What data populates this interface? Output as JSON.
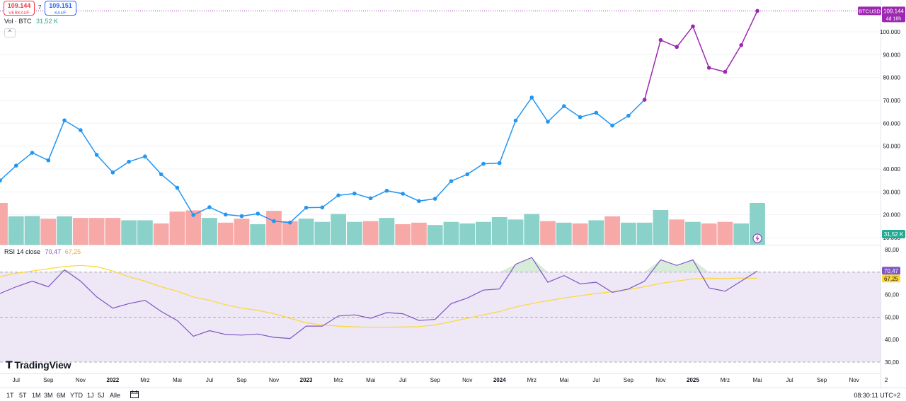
{
  "header": {
    "sell_price": "109.144",
    "sell_label": "VERKAUF",
    "spread": "7",
    "buy_price": "109.151",
    "buy_label": "KAUF"
  },
  "legends": {
    "volume_label": "Vol · BTC",
    "volume_value": "31,52 K",
    "rsi_label": "RSI 14 close",
    "rsi_value": "70,47",
    "rsi_ma_value": "67,25"
  },
  "price_axis": {
    "labels": [
      "100.000",
      "90.000",
      "80.000",
      "70.000",
      "60.000",
      "50.000",
      "40.000",
      "30.000",
      "20.000",
      "10.000"
    ],
    "symbol_tag": "BTCUSD",
    "last_price": "109.144",
    "countdown": "4d 18h",
    "volume_tag": "31,52 K"
  },
  "rsi_axis": {
    "labels": [
      "80,00",
      "70,00",
      "60,00",
      "50,00",
      "40,00",
      "30,00"
    ],
    "rsi_tag": "70,47",
    "ma_tag": "67,25"
  },
  "time_axis": [
    "Jul",
    "Sep",
    "Nov",
    "2022",
    "Mrz",
    "Mai",
    "Jul",
    "Sep",
    "Nov",
    "2023",
    "Mrz",
    "Mai",
    "Jul",
    "Sep",
    "Nov",
    "2024",
    "Mrz",
    "Mai",
    "Jul",
    "Sep",
    "Nov",
    "2025",
    "Mrz",
    "Mai",
    "Jul",
    "Sep",
    "Nov",
    "2"
  ],
  "bottom_bar": {
    "ranges": [
      "1T",
      "5T",
      "1M",
      "3M",
      "6M",
      "YTD",
      "1J",
      "5J",
      "Alle"
    ],
    "clock": "08:30:11 UTC+2"
  },
  "logo": "TradingView",
  "colors": {
    "price_line": "#2196f3",
    "price_line_recent": "#9c27b0",
    "volume_up": "#8ad1c9",
    "volume_down": "#f7a9a7",
    "rsi_line": "#7e57c2",
    "rsi_ma": "#fdd835",
    "rsi_band": "#ede7f6"
  },
  "chart_data": [
    {
      "type": "line",
      "title": "BTCUSD",
      "x": [
        "2021-06",
        "2021-07",
        "2021-08",
        "2021-09",
        "2021-10",
        "2021-11",
        "2021-12",
        "2022-01",
        "2022-02",
        "2022-03",
        "2022-04",
        "2022-05",
        "2022-06",
        "2022-07",
        "2022-08",
        "2022-09",
        "2022-10",
        "2022-11",
        "2022-12",
        "2023-01",
        "2023-02",
        "2023-03",
        "2023-04",
        "2023-05",
        "2023-06",
        "2023-07",
        "2023-08",
        "2023-09",
        "2023-10",
        "2023-11",
        "2023-12",
        "2024-01",
        "2024-02",
        "2024-03",
        "2024-04",
        "2024-05",
        "2024-06",
        "2024-07",
        "2024-08",
        "2024-09",
        "2024-10",
        "2024-11",
        "2024-12",
        "2025-01",
        "2025-02",
        "2025-03",
        "2025-04",
        "2025-05"
      ],
      "series": [
        {
          "values": [
            35000,
            41500,
            47100,
            43800,
            61300,
            57000,
            46200,
            38500,
            43200,
            45500,
            37700,
            31800,
            19900,
            23300,
            20100,
            19400,
            20500,
            17200,
            16600,
            23100,
            23200,
            28500,
            29300,
            27200,
            30500,
            29200,
            26000,
            27000,
            34700,
            37700,
            42300,
            42600,
            61200,
            71300,
            60700,
            67500,
            62700,
            64600,
            59000,
            63300,
            70300,
            96400,
            93400,
            102400,
            84300,
            82500,
            94200,
            109144
          ]
        }
      ],
      "ylim": [
        10000,
        110000
      ],
      "volume": [
        26500,
        18000,
        18200,
        16500,
        18000,
        17000,
        17000,
        17000,
        15500,
        15500,
        13500,
        21000,
        21800,
        17000,
        14000,
        16500,
        13000,
        21500,
        15000,
        16500,
        14500,
        19500,
        14500,
        15000,
        17000,
        13000,
        14000,
        12500,
        14500,
        13500,
        14500,
        17500,
        16000,
        19500,
        15000,
        14000,
        13500,
        15500,
        18000,
        14000,
        14000,
        22000,
        16000,
        14500,
        13500,
        14500,
        13500,
        31520
      ],
      "volume_up": [
        false,
        true,
        true,
        false,
        true,
        false,
        false,
        false,
        true,
        true,
        false,
        false,
        false,
        true,
        false,
        false,
        true,
        false,
        false,
        true,
        true,
        true,
        true,
        false,
        true,
        false,
        false,
        true,
        true,
        true,
        true,
        true,
        true,
        true,
        false,
        true,
        false,
        true,
        false,
        true,
        true,
        true,
        false,
        true,
        false,
        false,
        true,
        true
      ],
      "xlabel": "",
      "ylabel": ""
    },
    {
      "type": "line",
      "title": "RSI 14 close",
      "x": [
        "2021-06",
        "2021-07",
        "2021-08",
        "2021-09",
        "2021-10",
        "2021-11",
        "2021-12",
        "2022-01",
        "2022-02",
        "2022-03",
        "2022-04",
        "2022-05",
        "2022-06",
        "2022-07",
        "2022-08",
        "2022-09",
        "2022-10",
        "2022-11",
        "2022-12",
        "2023-01",
        "2023-02",
        "2023-03",
        "2023-04",
        "2023-05",
        "2023-06",
        "2023-07",
        "2023-08",
        "2023-09",
        "2023-10",
        "2023-11",
        "2023-12",
        "2024-01",
        "2024-02",
        "2024-03",
        "2024-04",
        "2024-05",
        "2024-06",
        "2024-07",
        "2024-08",
        "2024-09",
        "2024-10",
        "2024-11",
        "2024-12",
        "2025-01",
        "2025-02",
        "2025-03",
        "2025-04",
        "2025-05"
      ],
      "series": [
        {
          "name": "RSI",
          "values": [
            60.5,
            63.5,
            66,
            63.5,
            71,
            66,
            59,
            54,
            56,
            57.5,
            52.5,
            48.5,
            41.5,
            44,
            42.3,
            42,
            42.5,
            41,
            40.5,
            46,
            46,
            50.5,
            51,
            49.5,
            52,
            51.5,
            48.5,
            49,
            56,
            58.5,
            62,
            62.5,
            73.5,
            76.5,
            65.5,
            68.5,
            64.8,
            65.5,
            61,
            62.5,
            66,
            75.5,
            73,
            75.5,
            63,
            61.5,
            66,
            70.47
          ]
        },
        {
          "name": "MA",
          "values": [
            68,
            69.5,
            70.5,
            71.5,
            72.5,
            73,
            72.5,
            70.5,
            68,
            66,
            63.5,
            61.5,
            59,
            57.5,
            55.5,
            54,
            53,
            51.5,
            49.5,
            47.5,
            46.5,
            46,
            45.7,
            45.5,
            45.5,
            45.6,
            45.8,
            46.5,
            48,
            49.5,
            51,
            52.5,
            54.5,
            56,
            57.3,
            58.5,
            59.5,
            60.5,
            61.3,
            62.3,
            63.5,
            65,
            66,
            67,
            67.3,
            67.2,
            67.4,
            67.25
          ]
        }
      ],
      "ylim": [
        30,
        80
      ],
      "bands": [
        30,
        50,
        70
      ],
      "xlabel": "",
      "ylabel": ""
    }
  ]
}
